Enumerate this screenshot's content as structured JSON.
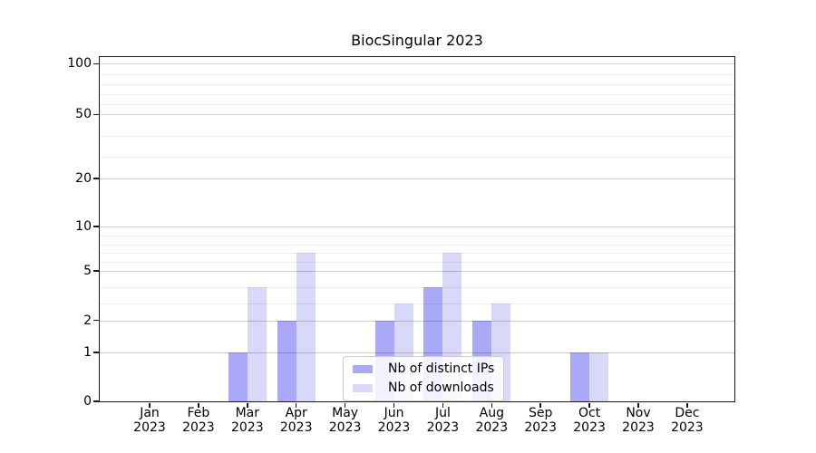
{
  "title": "BiocSingular 2023",
  "colors": {
    "distinct_ips": "#a9a9f7",
    "downloads": "#d8d8f9",
    "grid_major": "#cccccc",
    "grid_minor": "#ececec",
    "spine": "#1a1a1a"
  },
  "legend": {
    "items": [
      {
        "key": "distinct_ips",
        "label": "Nb of distinct IPs"
      },
      {
        "key": "downloads",
        "label": "Nb of downloads"
      }
    ]
  },
  "chart_data": {
    "type": "bar",
    "title": "BiocSingular 2023",
    "categories": [
      "Jan",
      "Feb",
      "Mar",
      "Apr",
      "May",
      "Jun",
      "Jul",
      "Aug",
      "Sep",
      "Oct",
      "Nov",
      "Dec"
    ],
    "year_label": "2023",
    "series": [
      {
        "name": "Nb of distinct IPs",
        "key": "distinct_ips",
        "values": [
          0,
          0,
          1,
          2,
          0,
          2,
          4,
          2,
          0,
          1,
          0,
          0
        ]
      },
      {
        "name": "Nb of downloads",
        "key": "downloads",
        "values": [
          0,
          0,
          4,
          7,
          0,
          3,
          7,
          3,
          0,
          1,
          0,
          0
        ]
      }
    ],
    "y_axis": {
      "ticks": [
        0,
        1,
        2,
        5,
        10,
        20,
        50,
        100
      ],
      "major_gridlines": [
        1,
        2,
        5,
        10,
        20,
        50,
        100
      ],
      "minor_gridlines": [
        3,
        4,
        6,
        7,
        8,
        9,
        30,
        40,
        60,
        70,
        80,
        90
      ],
      "range": [
        0,
        110
      ],
      "scale": "log-like"
    },
    "x_axis": {
      "tick_count": 12
    },
    "grid": true,
    "legend_position": "lower-center"
  }
}
